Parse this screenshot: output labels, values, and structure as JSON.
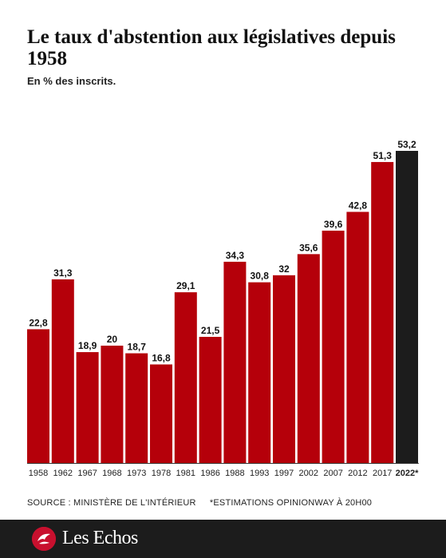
{
  "header": {
    "title": "Le taux d'abstention aux législatives depuis 1958",
    "subtitle": "En % des inscrits."
  },
  "source": {
    "text": "SOURCE : MINISTÈRE DE L'INTÉRIEUR",
    "note": "*ESTIMATIONS OPINIONWAY À 20H00"
  },
  "footer": {
    "brand": "Les Echos",
    "logo_icon": "les-echos-logo-icon"
  },
  "colors": {
    "bar": "#b5000a",
    "bar_highlight": "#1c1c1c",
    "brand_red": "#c8102e"
  },
  "chart_data": {
    "type": "bar",
    "title": "Le taux d'abstention aux législatives depuis 1958",
    "subtitle": "En % des inscrits.",
    "categories": [
      "1958",
      "1962",
      "1967",
      "1968",
      "1973",
      "1978",
      "1981",
      "1986",
      "1988",
      "1993",
      "1997",
      "2002",
      "2007",
      "2012",
      "2017",
      "2022*"
    ],
    "values": [
      22.8,
      31.3,
      18.9,
      20,
      18.7,
      16.8,
      29.1,
      21.5,
      34.3,
      30.8,
      32,
      35.6,
      39.6,
      42.8,
      51.3,
      53.2
    ],
    "value_labels": [
      "22,8",
      "31,3",
      "18,9",
      "20",
      "18,7",
      "16,8",
      "29,1",
      "21,5",
      "34,3",
      "30,8",
      "32",
      "35,6",
      "39,6",
      "42,8",
      "51,3",
      "53,2"
    ],
    "highlight": "2022*",
    "ylim": [
      0,
      55
    ],
    "grid": false,
    "legend": "none"
  }
}
